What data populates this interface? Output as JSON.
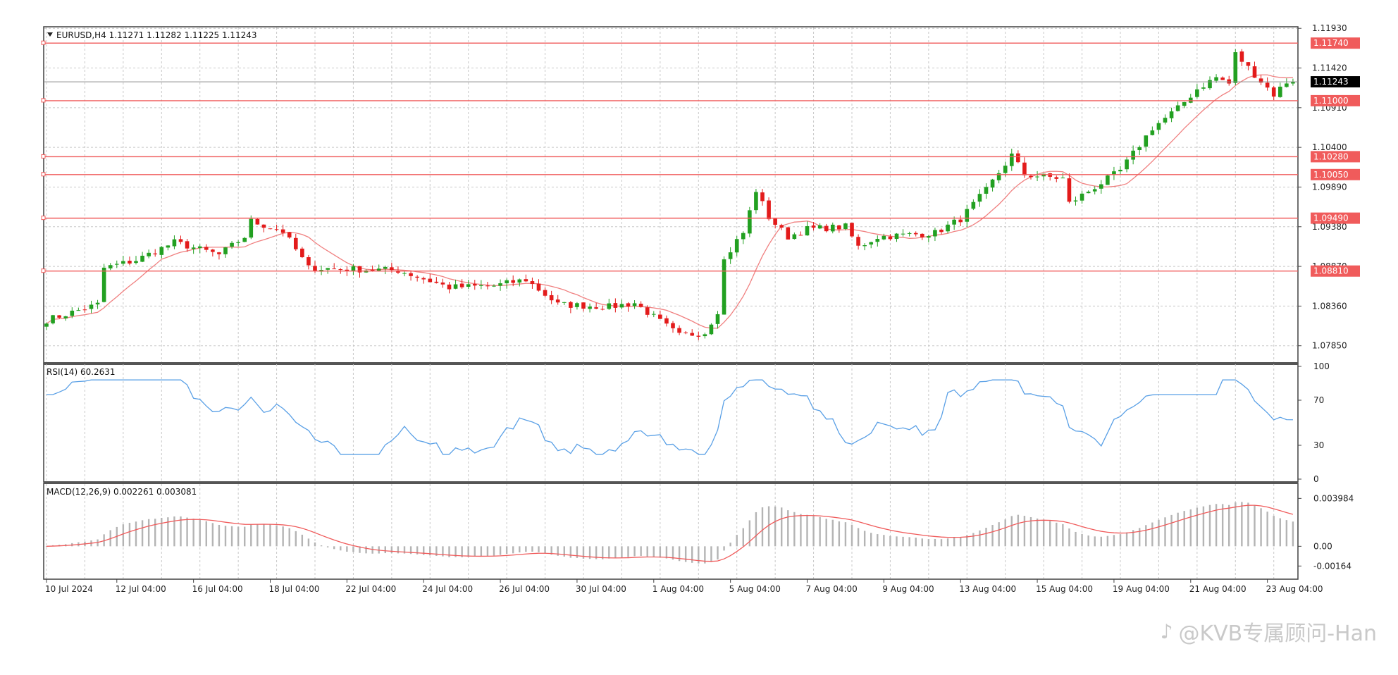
{
  "chart_data": [
    {
      "panel": "price",
      "type": "candlestick",
      "title": "EURUSD,H4  1.11271 1.11282 1.11225 1.11243",
      "ylim": [
        1.0763,
        1.1195
      ],
      "y_ticks": [
        "1.11930",
        "1.11420",
        "1.10910",
        "1.10400",
        "1.09890",
        "1.09380",
        "1.08870",
        "1.08360",
        "1.07850"
      ],
      "y_tick_values": [
        1.1193,
        1.1142,
        1.1091,
        1.104,
        1.0989,
        1.0938,
        1.0887,
        1.0836,
        1.0785
      ],
      "x_ticks": [
        "10 Jul 2024",
        "12 Jul 04:00",
        "16 Jul 04:00",
        "18 Jul 04:00",
        "22 Jul 04:00",
        "24 Jul 04:00",
        "26 Jul 04:00",
        "30 Jul 04:00",
        "1 Aug 04:00",
        "5 Aug 04:00",
        "7 Aug 04:00",
        "9 Aug 04:00",
        "13 Aug 04:00",
        "15 Aug 04:00",
        "19 Aug 04:00",
        "21 Aug 04:00",
        "23 Aug 04:00"
      ],
      "x_tick_index": [
        0,
        11,
        23,
        35,
        47,
        59,
        71,
        83,
        95,
        107,
        119,
        131,
        143,
        155,
        167,
        179,
        191
      ],
      "close_anchors": [
        [
          0,
          1.0818
        ],
        [
          8,
          1.0838
        ],
        [
          9,
          1.0885
        ],
        [
          14,
          1.0895
        ],
        [
          20,
          1.0918
        ],
        [
          27,
          1.0902
        ],
        [
          31,
          1.0925
        ],
        [
          32,
          1.0945
        ],
        [
          37,
          1.0932
        ],
        [
          41,
          1.0885
        ],
        [
          55,
          1.0882
        ],
        [
          63,
          1.086
        ],
        [
          70,
          1.0862
        ],
        [
          75,
          1.087
        ],
        [
          80,
          1.0838
        ],
        [
          88,
          1.0835
        ],
        [
          92,
          1.084
        ],
        [
          99,
          1.0798
        ],
        [
          103,
          1.0802
        ],
        [
          105,
          1.083
        ],
        [
          106,
          1.0895
        ],
        [
          108,
          1.092
        ],
        [
          109,
          1.093
        ],
        [
          111,
          1.0985
        ],
        [
          113,
          1.095
        ],
        [
          116,
          1.0925
        ],
        [
          119,
          1.0935
        ],
        [
          125,
          1.0938
        ],
        [
          127,
          1.0912
        ],
        [
          130,
          1.0925
        ],
        [
          139,
          1.093
        ],
        [
          143,
          1.0948
        ],
        [
          147,
          1.0985
        ],
        [
          151,
          1.103
        ],
        [
          153,
          1.1005
        ],
        [
          159,
          1.1
        ],
        [
          160,
          1.0968
        ],
        [
          168,
          1.101
        ],
        [
          173,
          1.1065
        ],
        [
          177,
          1.109
        ],
        [
          180,
          1.1115
        ],
        [
          183,
          1.113
        ],
        [
          185,
          1.1122
        ],
        [
          186,
          1.116
        ],
        [
          190,
          1.1125
        ],
        [
          192,
          1.1108
        ],
        [
          194,
          1.1124
        ]
      ],
      "horizontal_levels": [
        "1.11740",
        "1.11000",
        "1.10280",
        "1.10050",
        "1.09490",
        "1.08810"
      ],
      "horizontal_level_values": [
        1.1174,
        1.11,
        1.1028,
        1.1005,
        1.0949,
        1.0881
      ],
      "current_price": "1.11243",
      "current_price_value": 1.11243,
      "moving_average_period": 10,
      "colors": {
        "up": "#22a021",
        "down": "#e31b1b",
        "level": "#f05b5b",
        "ma": "#f08080",
        "grid": "#c8c8c8",
        "price_tag": "#000000"
      }
    },
    {
      "panel": "rsi",
      "type": "line",
      "title": "RSI(14) 60.2631",
      "ylim": [
        0,
        100
      ],
      "y_ticks": [
        "100",
        "70",
        "30",
        "0"
      ],
      "y_tick_values": [
        100,
        70,
        30,
        0
      ],
      "color": "#5aa0e6"
    },
    {
      "panel": "macd",
      "type": "bar+line",
      "title": "MACD(12,26,9) 0.002261 0.003081",
      "ylim": [
        -0.0025,
        0.005
      ],
      "y_ticks": [
        "0.003984",
        "0.00",
        "-0.00164"
      ],
      "y_tick_values": [
        0.003984,
        0.0,
        -0.00164
      ],
      "colors": {
        "histogram": "#b4b4b4",
        "signal": "#f05b5b"
      }
    }
  ],
  "watermark": {
    "icon": "douyin-logo-icon",
    "text": "@KVB专属顾问-Han"
  }
}
